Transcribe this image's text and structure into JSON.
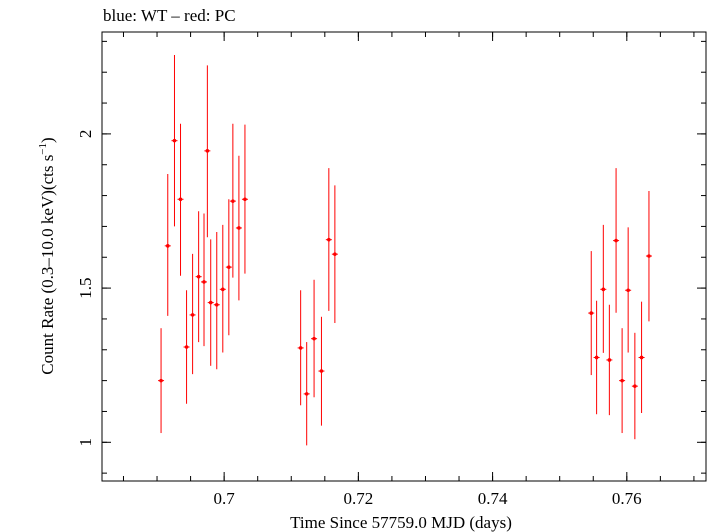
{
  "chart_data": {
    "type": "scatter",
    "title": "blue: WT – red: PC",
    "xlabel": "Time Since 57759.0 MJD (days)",
    "ylabel_main": "Count Rate (0.3–10.0 keV)(cts s",
    "ylabel_sup": "−1",
    "ylabel_end": ")",
    "xlim": [
      0.6818,
      0.7718
    ],
    "ylim": [
      0.8745,
      2.3304
    ],
    "x_ticks": [
      {
        "value": 0.7,
        "label": "0.7"
      },
      {
        "value": 0.72,
        "label": "0.72"
      },
      {
        "value": 0.74,
        "label": "0.74"
      },
      {
        "value": 0.76,
        "label": "0.76"
      }
    ],
    "y_ticks": [
      {
        "value": 1.0,
        "label": "1"
      },
      {
        "value": 1.5,
        "label": "1.5"
      },
      {
        "value": 2.0,
        "label": "2"
      }
    ],
    "series": [
      {
        "color": "#ff0000",
        "points": [
          {
            "x": 0.6906,
            "y": 1.2,
            "ylo": 1.03,
            "yhi": 1.37
          },
          {
            "x": 0.6916,
            "y": 1.637,
            "ylo": 1.41,
            "yhi": 1.87
          },
          {
            "x": 0.6926,
            "y": 1.978,
            "ylo": 1.7,
            "yhi": 2.256
          },
          {
            "x": 0.6935,
            "y": 1.788,
            "ylo": 1.54,
            "yhi": 2.033
          },
          {
            "x": 0.6944,
            "y": 1.309,
            "ylo": 1.125,
            "yhi": 1.493
          },
          {
            "x": 0.6953,
            "y": 1.413,
            "ylo": 1.221,
            "yhi": 1.611
          },
          {
            "x": 0.6962,
            "y": 1.537,
            "ylo": 1.325,
            "yhi": 1.749
          },
          {
            "x": 0.697,
            "y": 1.52,
            "ylo": 1.312,
            "yhi": 1.742
          },
          {
            "x": 0.6975,
            "y": 1.945,
            "ylo": 1.665,
            "yhi": 2.222
          },
          {
            "x": 0.698,
            "y": 1.453,
            "ylo": 1.248,
            "yhi": 1.658
          },
          {
            "x": 0.6989,
            "y": 1.446,
            "ylo": 1.237,
            "yhi": 1.682
          },
          {
            "x": 0.6998,
            "y": 1.496,
            "ylo": 1.291,
            "yhi": 1.705
          },
          {
            "x": 0.7007,
            "y": 1.568,
            "ylo": 1.347,
            "yhi": 1.788
          },
          {
            "x": 0.7013,
            "y": 1.782,
            "ylo": 1.534,
            "yhi": 2.033
          },
          {
            "x": 0.7022,
            "y": 1.695,
            "ylo": 1.46,
            "yhi": 1.929
          },
          {
            "x": 0.7031,
            "y": 1.788,
            "ylo": 1.547,
            "yhi": 2.03
          },
          {
            "x": 0.7114,
            "y": 1.306,
            "ylo": 1.12,
            "yhi": 1.493
          },
          {
            "x": 0.7123,
            "y": 1.157,
            "ylo": 0.99,
            "yhi": 1.325
          },
          {
            "x": 0.7134,
            "y": 1.336,
            "ylo": 1.146,
            "yhi": 1.527
          },
          {
            "x": 0.7145,
            "y": 1.231,
            "ylo": 1.054,
            "yhi": 1.407
          },
          {
            "x": 0.7156,
            "y": 1.657,
            "ylo": 1.426,
            "yhi": 1.889
          },
          {
            "x": 0.7165,
            "y": 1.61,
            "ylo": 1.387,
            "yhi": 1.833
          },
          {
            "x": 0.7547,
            "y": 1.419,
            "ylo": 1.218,
            "yhi": 1.62
          },
          {
            "x": 0.7555,
            "y": 1.275,
            "ylo": 1.091,
            "yhi": 1.459
          },
          {
            "x": 0.7565,
            "y": 1.496,
            "ylo": 1.29,
            "yhi": 1.705
          },
          {
            "x": 0.7574,
            "y": 1.267,
            "ylo": 1.088,
            "yhi": 1.446
          },
          {
            "x": 0.7584,
            "y": 1.654,
            "ylo": 1.42,
            "yhi": 1.889
          },
          {
            "x": 0.7593,
            "y": 1.2,
            "ylo": 1.03,
            "yhi": 1.37
          },
          {
            "x": 0.7602,
            "y": 1.493,
            "ylo": 1.291,
            "yhi": 1.697
          },
          {
            "x": 0.7612,
            "y": 1.182,
            "ylo": 1.01,
            "yhi": 1.355
          },
          {
            "x": 0.7622,
            "y": 1.275,
            "ylo": 1.095,
            "yhi": 1.456
          },
          {
            "x": 0.7633,
            "y": 1.604,
            "ylo": 1.392,
            "yhi": 1.815
          }
        ]
      }
    ],
    "grid": false
  }
}
